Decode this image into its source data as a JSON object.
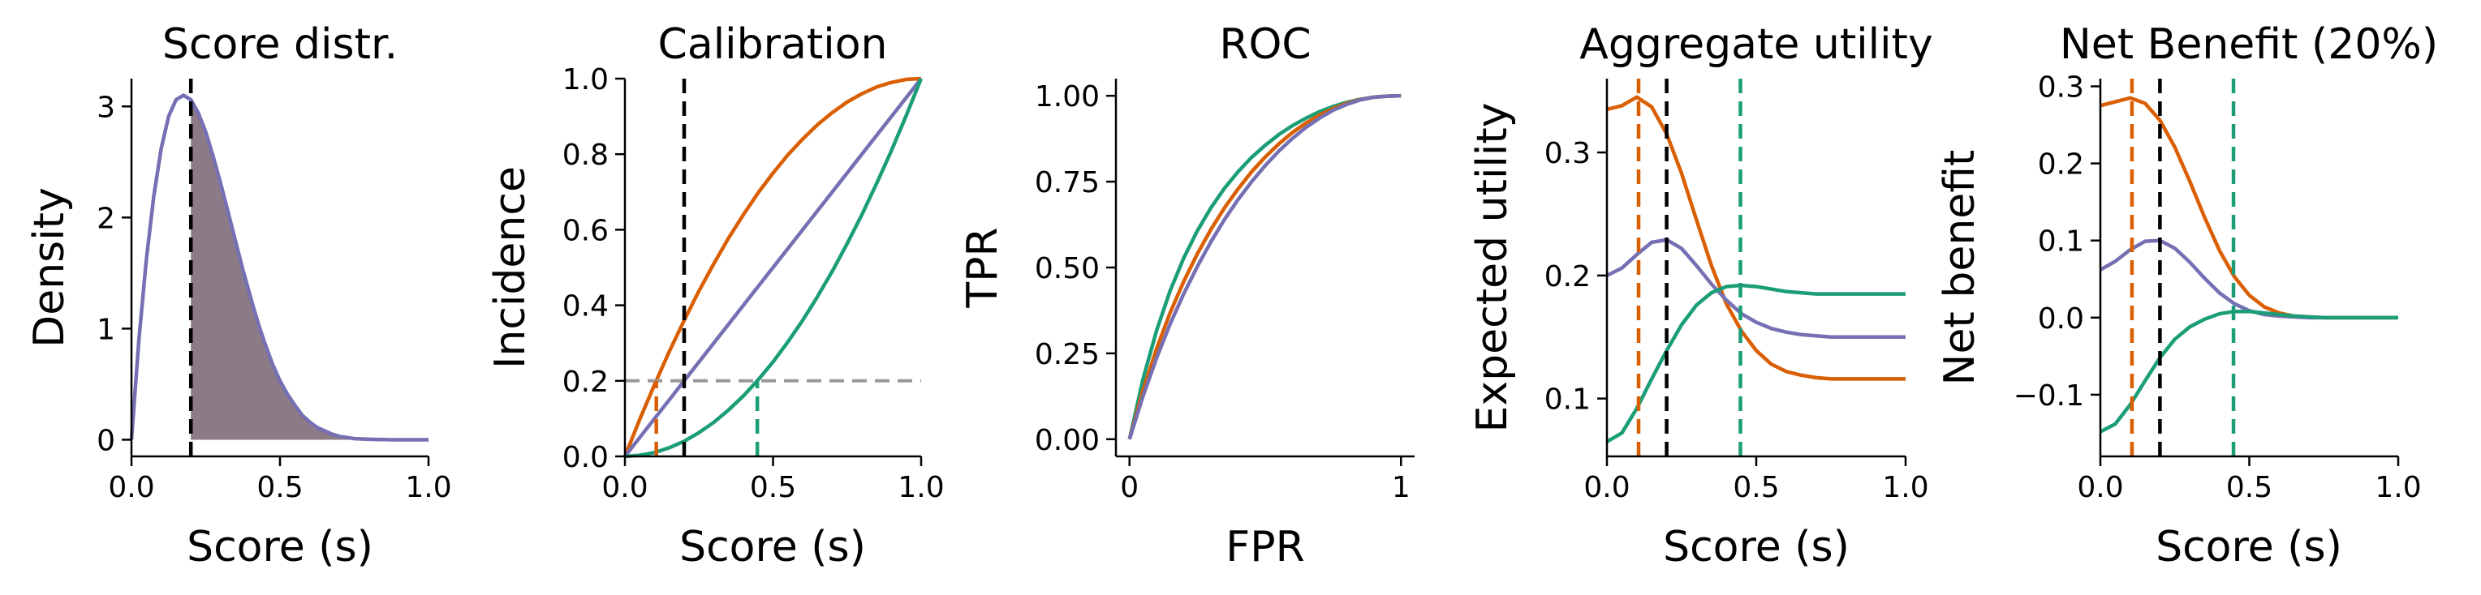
{
  "colors": {
    "orange": "#d95f02",
    "purple": "#7570b3",
    "green": "#1b9e77",
    "black": "#000000",
    "gray": "#999999",
    "fill": "#8c7b86"
  },
  "chart_data": [
    {
      "id": "score",
      "type": "area",
      "title": "Score distr.",
      "xlabel": "Score (s)",
      "ylabel": "Density",
      "xlim": [
        0,
        1
      ],
      "ylim": [
        -0.15,
        3.25
      ],
      "xticks": [
        {
          "v": 0,
          "label": "0.0"
        },
        {
          "v": 0.5,
          "label": "0.5"
        },
        {
          "v": 1,
          "label": "1.0"
        }
      ],
      "yticks": [
        {
          "v": 0,
          "label": "0"
        },
        {
          "v": 1,
          "label": "1"
        },
        {
          "v": 2,
          "label": "2"
        },
        {
          "v": 3,
          "label": "3"
        }
      ],
      "series": [
        {
          "color": "purple",
          "fill": "fill",
          "fill_from_x": 0.2,
          "x": [
            0,
            0.025,
            0.05,
            0.075,
            0.1,
            0.125,
            0.15,
            0.175,
            0.2,
            0.225,
            0.25,
            0.275,
            0.3,
            0.325,
            0.35,
            0.375,
            0.4,
            0.425,
            0.45,
            0.475,
            0.5,
            0.525,
            0.55,
            0.575,
            0.6,
            0.625,
            0.65,
            0.675,
            0.7,
            0.725,
            0.75,
            0.775,
            0.8,
            0.825,
            0.85,
            0.875,
            0.9,
            0.925,
            0.95,
            0.975,
            1.0
          ],
          "y": [
            0,
            0.9,
            1.62,
            2.19,
            2.62,
            2.91,
            3.06,
            3.1,
            3.06,
            2.94,
            2.77,
            2.55,
            2.31,
            2.05,
            1.79,
            1.53,
            1.29,
            1.06,
            0.86,
            0.68,
            0.53,
            0.41,
            0.31,
            0.22,
            0.16,
            0.11,
            0.08,
            0.05,
            0.03,
            0.02,
            0.01,
            0.007,
            0.004,
            0.002,
            0.001,
            0,
            0,
            0,
            0,
            0,
            0
          ]
        }
      ],
      "vlines": [
        {
          "x": 0.2,
          "color": "black",
          "dashed": true,
          "y0": -0.15,
          "y1": 3.25
        }
      ],
      "hlines": []
    },
    {
      "id": "calib",
      "type": "line",
      "title": "Calibration",
      "xlabel": "Score (s)",
      "ylabel": "Incidence",
      "xlim": [
        0,
        1
      ],
      "ylim": [
        0,
        1
      ],
      "xticks": [
        {
          "v": 0,
          "label": "0.0"
        },
        {
          "v": 0.5,
          "label": "0.5"
        },
        {
          "v": 1,
          "label": "1.0"
        }
      ],
      "yticks": [
        {
          "v": 0,
          "label": "0.0"
        },
        {
          "v": 0.2,
          "label": "0.2"
        },
        {
          "v": 0.4,
          "label": "0.4"
        },
        {
          "v": 0.6,
          "label": "0.6"
        },
        {
          "v": 0.8,
          "label": "0.8"
        },
        {
          "v": 1,
          "label": "1.0"
        }
      ],
      "series": [
        {
          "color": "orange",
          "x": [
            0,
            0.05,
            0.1,
            0.15,
            0.2,
            0.25,
            0.3,
            0.35,
            0.4,
            0.45,
            0.5,
            0.55,
            0.6,
            0.65,
            0.7,
            0.75,
            0.8,
            0.85,
            0.9,
            0.95,
            1.0
          ],
          "y": [
            0,
            0.098,
            0.19,
            0.278,
            0.36,
            0.438,
            0.51,
            0.578,
            0.64,
            0.698,
            0.75,
            0.798,
            0.84,
            0.878,
            0.91,
            0.938,
            0.96,
            0.978,
            0.99,
            0.998,
            1.0
          ]
        },
        {
          "color": "purple",
          "x": [
            0,
            1
          ],
          "y": [
            0,
            1
          ]
        },
        {
          "color": "green",
          "x": [
            0,
            0.05,
            0.1,
            0.15,
            0.2,
            0.25,
            0.3,
            0.35,
            0.4,
            0.45,
            0.5,
            0.55,
            0.6,
            0.65,
            0.7,
            0.75,
            0.8,
            0.85,
            0.9,
            0.95,
            1.0
          ],
          "y": [
            0,
            0.003,
            0.01,
            0.023,
            0.04,
            0.063,
            0.09,
            0.123,
            0.16,
            0.203,
            0.25,
            0.303,
            0.36,
            0.423,
            0.49,
            0.563,
            0.64,
            0.723,
            0.81,
            0.903,
            1.0
          ]
        }
      ],
      "vlines": [
        {
          "x": 0.2,
          "color": "black",
          "dashed": true,
          "y0": 0,
          "y1": 1
        },
        {
          "x": 0.106,
          "color": "orange",
          "dashed": true,
          "y0": 0,
          "y1": 0.2
        },
        {
          "x": 0.447,
          "color": "green",
          "dashed": true,
          "y0": 0,
          "y1": 0.2
        }
      ],
      "hlines": [
        {
          "y": 0.2,
          "color": "gray",
          "dashed": true
        }
      ]
    },
    {
      "id": "roc",
      "type": "line",
      "title": "ROC",
      "xlabel": "FPR",
      "ylabel": "TPR",
      "xlim": [
        -0.05,
        1.05
      ],
      "ylim": [
        -0.05,
        1.05
      ],
      "xticks": [
        {
          "v": 0,
          "label": "0"
        },
        {
          "v": 1,
          "label": "1"
        }
      ],
      "yticks": [
        {
          "v": 0,
          "label": "0.00"
        },
        {
          "v": 0.25,
          "label": "0.25"
        },
        {
          "v": 0.5,
          "label": "0.50"
        },
        {
          "v": 0.75,
          "label": "0.75"
        },
        {
          "v": 1,
          "label": "1.00"
        }
      ],
      "series": [
        {
          "color": "green",
          "x": [
            0,
            0.05,
            0.1,
            0.15,
            0.2,
            0.25,
            0.3,
            0.35,
            0.4,
            0.45,
            0.5,
            0.55,
            0.6,
            0.65,
            0.7,
            0.75,
            0.8,
            0.85,
            0.9,
            0.95,
            1.0
          ],
          "y": [
            0,
            0.176,
            0.317,
            0.433,
            0.528,
            0.607,
            0.674,
            0.731,
            0.779,
            0.821,
            0.856,
            0.887,
            0.913,
            0.935,
            0.954,
            0.969,
            0.981,
            0.99,
            0.996,
            0.999,
            1.0
          ]
        },
        {
          "color": "orange",
          "x": [
            0,
            0.05,
            0.1,
            0.15,
            0.2,
            0.25,
            0.3,
            0.35,
            0.4,
            0.45,
            0.5,
            0.55,
            0.6,
            0.65,
            0.7,
            0.75,
            0.8,
            0.85,
            0.9,
            0.95,
            1.0
          ],
          "y": [
            0,
            0.143,
            0.264,
            0.369,
            0.46,
            0.54,
            0.611,
            0.674,
            0.729,
            0.779,
            0.822,
            0.86,
            0.893,
            0.921,
            0.944,
            0.963,
            0.978,
            0.989,
            0.996,
            0.999,
            1.0
          ]
        },
        {
          "color": "purple",
          "x": [
            0,
            0.05,
            0.1,
            0.15,
            0.2,
            0.25,
            0.3,
            0.35,
            0.4,
            0.45,
            0.5,
            0.55,
            0.6,
            0.65,
            0.7,
            0.75,
            0.8,
            0.85,
            0.9,
            0.95,
            1.0
          ],
          "y": [
            0,
            0.126,
            0.237,
            0.336,
            0.424,
            0.503,
            0.575,
            0.64,
            0.698,
            0.75,
            0.797,
            0.839,
            0.876,
            0.908,
            0.935,
            0.958,
            0.975,
            0.988,
            0.996,
            0.999,
            1.0
          ]
        }
      ],
      "vlines": [],
      "hlines": []
    },
    {
      "id": "util",
      "type": "line",
      "title": "Aggregate utility",
      "xlabel": "Score (s)",
      "ylabel": "Expected utility",
      "xlim": [
        0,
        1
      ],
      "ylim": [
        0.053,
        0.36
      ],
      "xticks": [
        {
          "v": 0,
          "label": "0.0"
        },
        {
          "v": 0.5,
          "label": "0.5"
        },
        {
          "v": 1,
          "label": "1.0"
        }
      ],
      "yticks": [
        {
          "v": 0.1,
          "label": "0.1"
        },
        {
          "v": 0.2,
          "label": "0.2"
        },
        {
          "v": 0.3,
          "label": "0.3"
        }
      ],
      "series": [
        {
          "color": "orange",
          "x": [
            0,
            0.05,
            0.1,
            0.15,
            0.2,
            0.25,
            0.3,
            0.35,
            0.4,
            0.45,
            0.5,
            0.55,
            0.6,
            0.65,
            0.7,
            0.75,
            0.8,
            0.85,
            0.9,
            0.95,
            1.0
          ],
          "y": [
            0.335,
            0.338,
            0.345,
            0.337,
            0.315,
            0.283,
            0.245,
            0.208,
            0.177,
            0.155,
            0.139,
            0.128,
            0.122,
            0.119,
            0.117,
            0.116,
            0.116,
            0.116,
            0.116,
            0.116,
            0.116
          ]
        },
        {
          "color": "purple",
          "x": [
            0,
            0.05,
            0.1,
            0.15,
            0.2,
            0.25,
            0.3,
            0.35,
            0.4,
            0.45,
            0.5,
            0.55,
            0.6,
            0.65,
            0.7,
            0.75,
            0.8,
            0.85,
            0.9,
            0.95,
            1.0
          ],
          "y": [
            0.2,
            0.206,
            0.217,
            0.227,
            0.229,
            0.222,
            0.208,
            0.193,
            0.18,
            0.169,
            0.162,
            0.157,
            0.154,
            0.152,
            0.151,
            0.15,
            0.15,
            0.15,
            0.15,
            0.15,
            0.15
          ]
        },
        {
          "color": "green",
          "x": [
            0,
            0.05,
            0.1,
            0.15,
            0.2,
            0.25,
            0.3,
            0.35,
            0.4,
            0.45,
            0.5,
            0.55,
            0.6,
            0.65,
            0.7,
            0.75,
            0.8,
            0.85,
            0.9,
            0.95,
            1.0
          ],
          "y": [
            0.065,
            0.072,
            0.092,
            0.116,
            0.139,
            0.16,
            0.176,
            0.186,
            0.191,
            0.192,
            0.191,
            0.189,
            0.187,
            0.186,
            0.185,
            0.185,
            0.185,
            0.185,
            0.185,
            0.185,
            0.185
          ]
        }
      ],
      "vlines": [
        {
          "x": 0.106,
          "color": "orange",
          "dashed": true,
          "y0": 0.053,
          "y1": 0.36
        },
        {
          "x": 0.2,
          "color": "black",
          "dashed": true,
          "y0": 0.053,
          "y1": 0.36
        },
        {
          "x": 0.447,
          "color": "green",
          "dashed": true,
          "y0": 0.053,
          "y1": 0.36
        }
      ],
      "hlines": []
    },
    {
      "id": "nb",
      "type": "line",
      "title": "Net Benefit (20%)",
      "xlabel": "Score (s)",
      "ylabel": "Net benefit",
      "xlim": [
        0,
        1
      ],
      "ylim": [
        -0.18,
        0.31
      ],
      "xticks": [
        {
          "v": 0,
          "label": "0.0"
        },
        {
          "v": 0.5,
          "label": "0.5"
        },
        {
          "v": 1,
          "label": "1.0"
        }
      ],
      "yticks": [
        {
          "v": -0.1,
          "label": "−0.1"
        },
        {
          "v": 0,
          "label": "0.0"
        },
        {
          "v": 0.1,
          "label": "0.1"
        },
        {
          "v": 0.2,
          "label": "0.2"
        },
        {
          "v": 0.3,
          "label": "0.3"
        }
      ],
      "series": [
        {
          "color": "orange",
          "x": [
            0,
            0.05,
            0.1,
            0.15,
            0.2,
            0.25,
            0.3,
            0.35,
            0.4,
            0.45,
            0.5,
            0.55,
            0.6,
            0.65,
            0.7,
            0.75,
            0.8,
            0.85,
            0.9,
            0.95,
            1.0
          ],
          "y": [
            0.275,
            0.28,
            0.285,
            0.278,
            0.256,
            0.221,
            0.177,
            0.13,
            0.087,
            0.053,
            0.029,
            0.014,
            0.006,
            0.002,
            0.001,
            0,
            0,
            0,
            0,
            0,
            0
          ]
        },
        {
          "color": "purple",
          "x": [
            0,
            0.05,
            0.1,
            0.15,
            0.2,
            0.25,
            0.3,
            0.35,
            0.4,
            0.45,
            0.5,
            0.55,
            0.6,
            0.65,
            0.7,
            0.75,
            0.8,
            0.85,
            0.9,
            0.95,
            1.0
          ],
          "y": [
            0.062,
            0.073,
            0.088,
            0.099,
            0.1,
            0.09,
            0.072,
            0.051,
            0.032,
            0.018,
            0.009,
            0.004,
            0.002,
            0.001,
            0,
            0,
            0,
            0,
            0,
            0,
            0
          ]
        },
        {
          "color": "green",
          "x": [
            0,
            0.05,
            0.1,
            0.15,
            0.2,
            0.25,
            0.3,
            0.35,
            0.4,
            0.45,
            0.5,
            0.55,
            0.6,
            0.65,
            0.7,
            0.75,
            0.8,
            0.85,
            0.9,
            0.95,
            1.0
          ],
          "y": [
            -0.148,
            -0.138,
            -0.113,
            -0.082,
            -0.052,
            -0.028,
            -0.012,
            -0.002,
            0.005,
            0.008,
            0.008,
            0.006,
            0.004,
            0.002,
            0.001,
            0,
            0,
            0,
            0,
            0,
            0
          ]
        }
      ],
      "vlines": [
        {
          "x": 0.106,
          "color": "orange",
          "dashed": true,
          "y0": -0.18,
          "y1": 0.31
        },
        {
          "x": 0.2,
          "color": "black",
          "dashed": true,
          "y0": -0.18,
          "y1": 0.31
        },
        {
          "x": 0.447,
          "color": "green",
          "dashed": true,
          "y0": -0.18,
          "y1": 0.31
        }
      ],
      "hlines": []
    }
  ]
}
